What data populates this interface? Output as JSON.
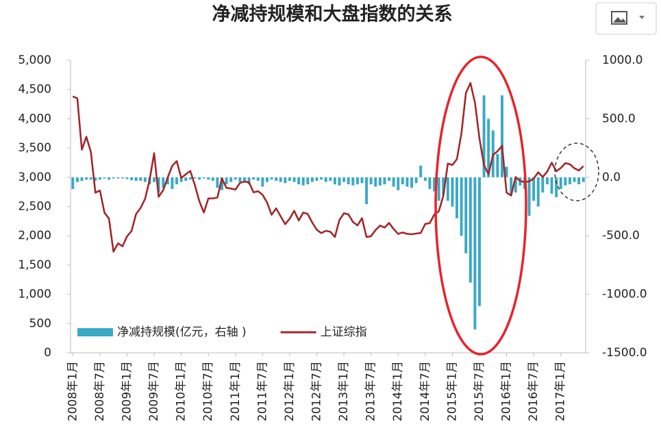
{
  "chart_data": {
    "type": "bar-line",
    "title": "净减持规模和大盘指数的关系",
    "categories": [
      "2008年1月",
      null,
      null,
      null,
      null,
      null,
      "2008年7月",
      null,
      null,
      null,
      null,
      null,
      "2009年1月",
      null,
      null,
      null,
      null,
      null,
      "2009年7月",
      null,
      null,
      null,
      null,
      null,
      "2010年1月",
      null,
      null,
      null,
      null,
      null,
      "2010年7月",
      null,
      null,
      null,
      null,
      null,
      "2011年1月",
      null,
      null,
      null,
      null,
      null,
      "2011年7月",
      null,
      null,
      null,
      null,
      null,
      "2012年1月",
      null,
      null,
      null,
      null,
      null,
      "2012年7月",
      null,
      null,
      null,
      null,
      null,
      "2013年1月",
      null,
      null,
      null,
      null,
      null,
      "2013年7月",
      null,
      null,
      null,
      null,
      null,
      "2014年1月",
      null,
      null,
      null,
      null,
      null,
      "2014年7月",
      null,
      null,
      null,
      null,
      null,
      "2015年1月",
      null,
      null,
      null,
      null,
      null,
      "2015年7月",
      null,
      null,
      null,
      null,
      null,
      "2016年1月",
      null,
      null,
      null,
      null,
      null,
      "2016年7月",
      null,
      null,
      null,
      null,
      null,
      "2017年1月",
      null,
      null,
      null,
      null,
      null
    ],
    "series": [
      {
        "name": "净减持规模(亿元，右轴 )",
        "kind": "bar",
        "axis": "y2",
        "color": "#3aa9c6",
        "values": [
          -100,
          -40,
          -30,
          -20,
          -20,
          -30,
          -20,
          -10,
          -20,
          -10,
          -10,
          -10,
          -15,
          -25,
          -30,
          -30,
          -40,
          -60,
          -40,
          -130,
          -90,
          -60,
          -100,
          -60,
          -40,
          -30,
          -20,
          -10,
          -20,
          -10,
          -20,
          -30,
          -90,
          -110,
          -60,
          -40,
          -20,
          -40,
          -30,
          -60,
          -20,
          -30,
          -80,
          -40,
          -20,
          -30,
          -40,
          -50,
          -30,
          -40,
          -60,
          -70,
          -60,
          -40,
          -30,
          -20,
          -40,
          -30,
          -60,
          -70,
          -40,
          -60,
          -70,
          -60,
          -50,
          -230,
          -60,
          -80,
          -70,
          -60,
          -30,
          -80,
          -110,
          -60,
          -80,
          -90,
          -50,
          100,
          -30,
          -100,
          -120,
          -200,
          -150,
          -200,
          -250,
          -350,
          -500,
          -650,
          -900,
          -1300,
          -1100,
          700,
          500,
          400,
          200,
          700,
          90,
          -150,
          -130,
          -70,
          -100,
          -330,
          -200,
          -250,
          -130,
          -60,
          -140,
          -170,
          -100,
          -70,
          -60,
          -40,
          -60,
          -40
        ]
      },
      {
        "name": "上证综指",
        "kind": "line",
        "axis": "y",
        "color": "#a2262a",
        "values": [
          4383,
          4348,
          3473,
          3693,
          3433,
          2736,
          2775,
          2397,
          2293,
          1729,
          1871,
          1821,
          1991,
          2082,
          2373,
          2477,
          2633,
          2959,
          3412,
          2667,
          2779,
          2996,
          3195,
          3277,
          2989,
          3051,
          3109,
          2870,
          2592,
          2398,
          2638,
          2639,
          2656,
          2979,
          2820,
          2808,
          2790,
          2905,
          2928,
          2912,
          2743,
          2762,
          2701,
          2568,
          2359,
          2469,
          2333,
          2199,
          2293,
          2428,
          2262,
          2397,
          2373,
          2225,
          2103,
          2047,
          2086,
          2069,
          1980,
          2269,
          2385,
          2366,
          2237,
          2178,
          2301,
          1979,
          1994,
          2098,
          2175,
          2141,
          2220,
          2116,
          2033,
          2056,
          2033,
          2026,
          2039,
          2048,
          2202,
          2217,
          2364,
          2420,
          2683,
          3235,
          3210,
          3310,
          3748,
          4442,
          4612,
          4277,
          3664,
          3206,
          3053,
          3383,
          3446,
          3539,
          2738,
          2688,
          3004,
          2938,
          2917,
          2930,
          2979,
          3085,
          3005,
          3100,
          3250,
          3104,
          3159,
          3242,
          3223,
          3155,
          3117,
          3192
        ]
      }
    ],
    "ylim": [
      0,
      5000
    ],
    "yticks": [
      0,
      500,
      {
        "value": 1000,
        "label": "1,000"
      },
      {
        "value": 1500,
        "label": "1,500"
      },
      {
        "value": 2000,
        "label": "2,000"
      },
      {
        "value": 2500,
        "label": "2,500"
      },
      {
        "value": 3000,
        "label": "3,000"
      },
      {
        "value": 3500,
        "label": "3,500"
      },
      {
        "value": 4000,
        "label": "4,000"
      },
      {
        "value": 4500,
        "label": "4,500"
      },
      {
        "value": 5000,
        "label": "5,000"
      }
    ],
    "y2lim": [
      -1500,
      1000
    ],
    "y2ticks": [
      {
        "value": -1500,
        "label": "-1500.0"
      },
      {
        "value": -1000,
        "label": "-1000.0"
      },
      {
        "value": -500,
        "label": "-500.0"
      },
      {
        "value": 0,
        "label": "0.0"
      },
      {
        "value": 500,
        "label": "500.0"
      },
      {
        "value": 1000,
        "label": "1000.0"
      }
    ],
    "legend": "lower left"
  }
}
